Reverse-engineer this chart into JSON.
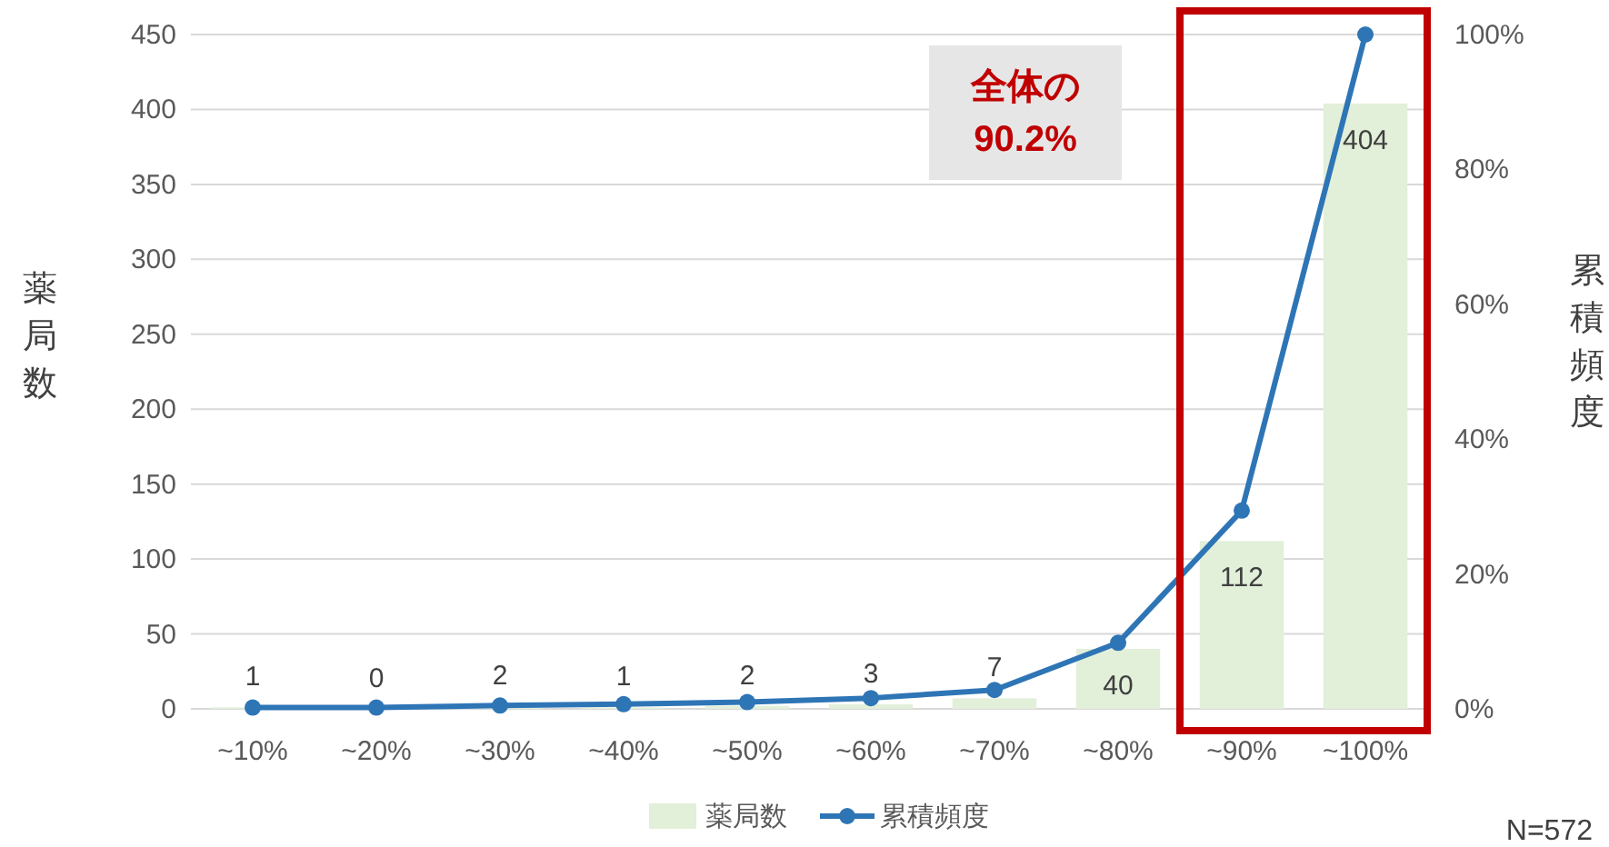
{
  "chart_data": {
    "type": "bar",
    "categories": [
      "~10%",
      "~20%",
      "~30%",
      "~40%",
      "~50%",
      "~60%",
      "~70%",
      "~80%",
      "~90%",
      "~100%"
    ],
    "ylabel": "薬局数",
    "y2label": "累積頻度",
    "ylim": [
      0,
      450
    ],
    "yticks": [
      0,
      50,
      100,
      150,
      200,
      250,
      300,
      350,
      400,
      450
    ],
    "y2lim": [
      0,
      100
    ],
    "y2ticks": [
      {
        "value": 0,
        "label": "0%"
      },
      {
        "value": 20,
        "label": "20%"
      },
      {
        "value": 40,
        "label": "40%"
      },
      {
        "value": 60,
        "label": "60%"
      },
      {
        "value": 80,
        "label": "80%"
      },
      {
        "value": 100,
        "label": "100%"
      }
    ],
    "grid": "y",
    "legend": "bottom",
    "series": [
      {
        "name": "薬局数",
        "color": "#e2efd9",
        "values": [
          1,
          0,
          2,
          1,
          2,
          3,
          7,
          40,
          112,
          404
        ],
        "value_labels": [
          "1",
          "0",
          "2",
          "1",
          "2",
          "3",
          "7",
          "40",
          "112",
          "404"
        ]
      },
      {
        "name": "累積頻度",
        "type": "line",
        "axis": "y2",
        "color": "#2e75b6",
        "marker": "circle",
        "values": [
          0.2,
          0.2,
          0.5,
          0.7,
          1.0,
          1.6,
          2.8,
          9.8,
          29.4,
          100
        ]
      }
    ],
    "annotations": [
      "全体の\n90.2%",
      "N=572"
    ]
  }
}
